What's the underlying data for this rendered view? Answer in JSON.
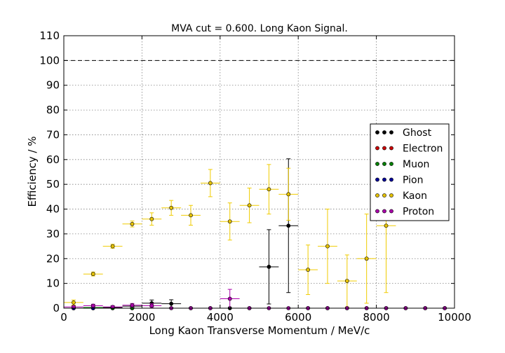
{
  "chart_data": {
    "type": "scatter",
    "title": "MVA cut = 0.600. Long Kaon Signal.",
    "xlabel": "Long Kaon Transverse Momentum / MeV/c",
    "ylabel": "Efficiency / %",
    "xlim": [
      0,
      10000
    ],
    "ylim": [
      0,
      110
    ],
    "xticks": [
      0,
      2000,
      4000,
      6000,
      8000,
      10000
    ],
    "yticks": [
      0,
      10,
      20,
      30,
      40,
      50,
      60,
      70,
      80,
      90,
      100,
      110
    ],
    "grid": true,
    "reference_line": 100,
    "legend_position": "right",
    "bin_half_width": 250,
    "series": [
      {
        "name": "Ghost",
        "color": "#000000",
        "bar_color": "#000000",
        "points": [
          {
            "x": 250,
            "y": 0,
            "err": 0
          },
          {
            "x": 750,
            "y": 0,
            "err": 0
          },
          {
            "x": 1250,
            "y": 0.3,
            "err": 0.3
          },
          {
            "x": 1750,
            "y": 0.8,
            "err": 0.5
          },
          {
            "x": 2250,
            "y": 2,
            "err": 1.3
          },
          {
            "x": 2750,
            "y": 1.8,
            "err": 1.6
          },
          {
            "x": 3250,
            "y": 0,
            "err": 0
          },
          {
            "x": 3750,
            "y": 0,
            "err": 0
          },
          {
            "x": 4250,
            "y": 0,
            "err": 0
          },
          {
            "x": 4750,
            "y": 0,
            "err": 0
          },
          {
            "x": 5250,
            "y": 16.7,
            "err": 15
          },
          {
            "x": 5750,
            "y": 33.3,
            "err": 27
          },
          {
            "x": 6250,
            "y": 0,
            "err": 0
          },
          {
            "x": 6750,
            "y": 0,
            "err": 0
          },
          {
            "x": 7250,
            "y": 0,
            "err": 0
          },
          {
            "x": 7750,
            "y": 0,
            "err": 0
          },
          {
            "x": 8250,
            "y": 0,
            "err": 0
          },
          {
            "x": 8750,
            "y": 0,
            "err": 0
          },
          {
            "x": 9250,
            "y": 0,
            "err": 0
          },
          {
            "x": 9750,
            "y": 0,
            "err": 0
          }
        ]
      },
      {
        "name": "Electron",
        "color": "#cc0000",
        "bar_color": "#cc0000",
        "points": [
          {
            "x": 250,
            "y": 0,
            "err": 0
          },
          {
            "x": 750,
            "y": 0,
            "err": 0
          },
          {
            "x": 1250,
            "y": 0,
            "err": 0
          },
          {
            "x": 1750,
            "y": 0,
            "err": 0
          }
        ]
      },
      {
        "name": "Muon",
        "color": "#008000",
        "bar_color": "#008000",
        "points": [
          {
            "x": 250,
            "y": 0,
            "err": 0
          },
          {
            "x": 750,
            "y": 0.3,
            "err": 0.3
          },
          {
            "x": 1250,
            "y": 0,
            "err": 0
          },
          {
            "x": 1750,
            "y": 0,
            "err": 0
          }
        ]
      },
      {
        "name": "Pion",
        "color": "#000099",
        "bar_color": "#000099",
        "points": [
          {
            "x": 250,
            "y": 0,
            "err": 0
          },
          {
            "x": 750,
            "y": 0,
            "err": 0
          }
        ]
      },
      {
        "name": "Kaon",
        "color": "#e6c200",
        "bar_color": "#f0cc00",
        "points": [
          {
            "x": 250,
            "y": 2.3,
            "err": 1.0
          },
          {
            "x": 750,
            "y": 13.8,
            "err": 0.8
          },
          {
            "x": 1250,
            "y": 25.0,
            "err": 0.8
          },
          {
            "x": 1750,
            "y": 34.0,
            "err": 1.2
          },
          {
            "x": 2250,
            "y": 36.0,
            "err": 2.5
          },
          {
            "x": 2750,
            "y": 40.5,
            "err": 3.0
          },
          {
            "x": 3250,
            "y": 37.5,
            "err": 4.0
          },
          {
            "x": 3750,
            "y": 50.5,
            "err": 5.5
          },
          {
            "x": 4250,
            "y": 35.0,
            "err": 7.5
          },
          {
            "x": 4750,
            "y": 41.5,
            "err": 7.0
          },
          {
            "x": 5250,
            "y": 48.0,
            "err": 10.0
          },
          {
            "x": 5750,
            "y": 46.0,
            "err": 10.5
          },
          {
            "x": 6250,
            "y": 15.5,
            "err": 10.0
          },
          {
            "x": 6750,
            "y": 25.0,
            "err": 15.0
          },
          {
            "x": 7250,
            "y": 11.0,
            "err": 10.5
          },
          {
            "x": 7750,
            "y": 20.0,
            "err": 18.0
          },
          {
            "x": 8250,
            "y": 33.3,
            "err": 27.0
          }
        ]
      },
      {
        "name": "Proton",
        "color": "#aa00aa",
        "bar_color": "#aa00aa",
        "points": [
          {
            "x": 250,
            "y": 0.5,
            "err": 0.5
          },
          {
            "x": 750,
            "y": 1.0,
            "err": 0.6
          },
          {
            "x": 1250,
            "y": 0.5,
            "err": 0.5
          },
          {
            "x": 1750,
            "y": 1.2,
            "err": 0.7
          },
          {
            "x": 2250,
            "y": 1.0,
            "err": 0.8
          },
          {
            "x": 2750,
            "y": 0,
            "err": 0
          },
          {
            "x": 3250,
            "y": 0,
            "err": 0
          },
          {
            "x": 3750,
            "y": 0,
            "err": 0
          },
          {
            "x": 4250,
            "y": 3.8,
            "err": 3.8
          },
          {
            "x": 4750,
            "y": 0,
            "err": 0
          },
          {
            "x": 5250,
            "y": 0,
            "err": 0
          },
          {
            "x": 5750,
            "y": 0,
            "err": 0
          },
          {
            "x": 6250,
            "y": 0,
            "err": 0
          },
          {
            "x": 6750,
            "y": 0,
            "err": 0
          },
          {
            "x": 7250,
            "y": 0,
            "err": 0
          },
          {
            "x": 7750,
            "y": 0,
            "err": 0
          },
          {
            "x": 8250,
            "y": 0,
            "err": 0
          },
          {
            "x": 8750,
            "y": 0,
            "err": 0
          },
          {
            "x": 9250,
            "y": 0,
            "err": 0
          },
          {
            "x": 9750,
            "y": 0,
            "err": 0
          }
        ]
      }
    ]
  }
}
